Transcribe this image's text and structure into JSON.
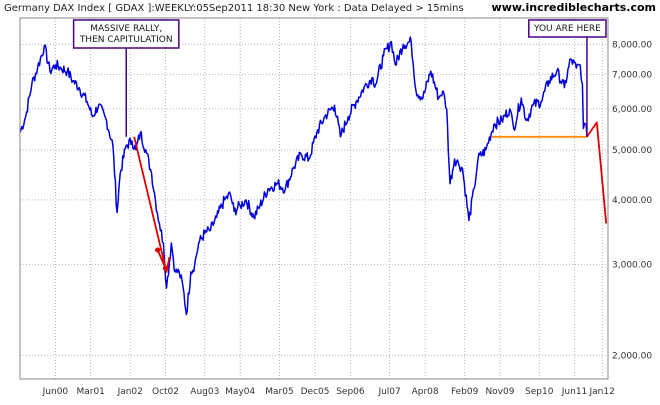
{
  "header": {
    "title": "Germany DAX Index [ GDAX ]:WEEKLY:05Sep2011 18:30 New York : Data Delayed > 15mins",
    "site": "www.incrediblecharts.com"
  },
  "colors": {
    "price_line": "#0000dd",
    "trend_line": "#dd0000",
    "support_line": "#ff8800",
    "annotation_border": "#4b0082",
    "grid": "#b4b4b4"
  },
  "chart_data": {
    "type": "line",
    "title": "Germany DAX Index [ GDAX ]:WEEKLY:05Sep2011 18:30 New York : Data Delayed > 15mins",
    "y_scale": "log",
    "ylim": [
      1800,
      9000
    ],
    "xlim": [
      "1999-09-01",
      "2012-02-15"
    ],
    "grid": true,
    "x_ticks": [
      {
        "label": "Jun00",
        "date": "2000-06-01"
      },
      {
        "label": "Mar01",
        "date": "2001-03-01"
      },
      {
        "label": "Jan02",
        "date": "2002-01-01"
      },
      {
        "label": "Oct02",
        "date": "2002-10-01"
      },
      {
        "label": "Aug03",
        "date": "2003-08-01"
      },
      {
        "label": "May04",
        "date": "2004-05-01"
      },
      {
        "label": "Mar05",
        "date": "2005-03-01"
      },
      {
        "label": "Dec05",
        "date": "2005-12-01"
      },
      {
        "label": "Sep06",
        "date": "2006-09-01"
      },
      {
        "label": "Jul07",
        "date": "2007-07-01"
      },
      {
        "label": "Apr08",
        "date": "2008-04-01"
      },
      {
        "label": "Feb09",
        "date": "2009-02-01"
      },
      {
        "label": "Nov09",
        "date": "2009-11-01"
      },
      {
        "label": "Sep10",
        "date": "2010-09-01"
      },
      {
        "label": "Jun11",
        "date": "2011-06-01"
      },
      {
        "label": "Jan12",
        "date": "2012-01-01"
      }
    ],
    "y_ticks": [
      {
        "label": "8,000.00",
        "value": 8000
      },
      {
        "label": "7,000.00",
        "value": 7000
      },
      {
        "label": "6,000.00",
        "value": 6000
      },
      {
        "label": "5,000.00",
        "value": 5000
      },
      {
        "label": "4,000.00",
        "value": 4000
      },
      {
        "label": "3,000.00",
        "value": 3000
      },
      {
        "label": "2,000.00",
        "value": 2000
      }
    ],
    "series": [
      {
        "role": "price",
        "points": [
          [
            "1999-09-01",
            5400
          ],
          [
            "1999-10-15",
            5800
          ],
          [
            "1999-12-01",
            6700
          ],
          [
            "2000-01-15",
            7200
          ],
          [
            "2000-03-07",
            7950
          ],
          [
            "2000-04-20",
            7100
          ],
          [
            "2000-06-01",
            7300
          ],
          [
            "2000-07-15",
            7200
          ],
          [
            "2000-09-01",
            7100
          ],
          [
            "2000-10-15",
            6800
          ],
          [
            "2000-12-01",
            6600
          ],
          [
            "2001-02-01",
            6200
          ],
          [
            "2001-03-15",
            5800
          ],
          [
            "2001-05-01",
            6100
          ],
          [
            "2001-07-01",
            5700
          ],
          [
            "2001-08-20",
            5100
          ],
          [
            "2001-09-21",
            3780
          ],
          [
            "2001-10-15",
            4500
          ],
          [
            "2001-12-01",
            5100
          ],
          [
            "2002-01-15",
            5200
          ],
          [
            "2002-02-15",
            5000
          ],
          [
            "2002-03-20",
            5400
          ],
          [
            "2002-05-01",
            5000
          ],
          [
            "2002-06-15",
            4500
          ],
          [
            "2002-07-15",
            4000
          ],
          [
            "2002-08-15",
            3600
          ],
          [
            "2002-09-15",
            3300
          ],
          [
            "2002-10-09",
            2700
          ],
          [
            "2002-11-15",
            3300
          ],
          [
            "2002-12-15",
            2900
          ],
          [
            "2003-01-15",
            2900
          ],
          [
            "2003-02-15",
            2700
          ],
          [
            "2003-03-12",
            2400
          ],
          [
            "2003-04-15",
            2900
          ],
          [
            "2003-05-15",
            3000
          ],
          [
            "2003-06-15",
            3300
          ],
          [
            "2003-08-01",
            3450
          ],
          [
            "2003-09-15",
            3500
          ],
          [
            "2003-11-01",
            3700
          ],
          [
            "2004-01-01",
            4000
          ],
          [
            "2004-02-15",
            4100
          ],
          [
            "2004-03-15",
            3800
          ],
          [
            "2004-05-01",
            3900
          ],
          [
            "2004-06-15",
            4000
          ],
          [
            "2004-08-15",
            3700
          ],
          [
            "2004-10-01",
            3900
          ],
          [
            "2004-12-01",
            4200
          ],
          [
            "2005-02-15",
            4300
          ],
          [
            "2005-04-15",
            4200
          ],
          [
            "2005-06-15",
            4600
          ],
          [
            "2005-08-15",
            4900
          ],
          [
            "2005-10-15",
            4800
          ],
          [
            "2005-12-15",
            5400
          ],
          [
            "2006-02-15",
            5800
          ],
          [
            "2006-05-01",
            6100
          ],
          [
            "2006-06-15",
            5300
          ],
          [
            "2006-08-15",
            5800
          ],
          [
            "2006-10-15",
            6200
          ],
          [
            "2006-12-15",
            6600
          ],
          [
            "2007-02-15",
            6900
          ],
          [
            "2007-03-15",
            6700
          ],
          [
            "2007-05-15",
            7600
          ],
          [
            "2007-07-15",
            8100
          ],
          [
            "2007-08-15",
            7300
          ],
          [
            "2007-10-15",
            8000
          ],
          [
            "2007-12-15",
            8100
          ],
          [
            "2008-01-21",
            6500
          ],
          [
            "2008-03-15",
            6300
          ],
          [
            "2008-05-15",
            7100
          ],
          [
            "2008-07-15",
            6300
          ],
          [
            "2008-08-15",
            6500
          ],
          [
            "2008-09-15",
            6000
          ],
          [
            "2008-10-10",
            4300
          ],
          [
            "2008-11-15",
            4800
          ],
          [
            "2008-12-15",
            4700
          ],
          [
            "2009-01-15",
            4600
          ],
          [
            "2009-03-06",
            3650
          ],
          [
            "2009-04-15",
            4200
          ],
          [
            "2009-05-15",
            4800
          ],
          [
            "2009-07-15",
            5000
          ],
          [
            "2009-09-15",
            5600
          ],
          [
            "2009-11-15",
            5700
          ],
          [
            "2010-01-15",
            6000
          ],
          [
            "2010-02-15",
            5500
          ],
          [
            "2010-04-15",
            6300
          ],
          [
            "2010-05-25",
            5700
          ],
          [
            "2010-07-15",
            6100
          ],
          [
            "2010-09-15",
            6200
          ],
          [
            "2010-11-15",
            6800
          ],
          [
            "2011-01-15",
            7100
          ],
          [
            "2011-03-15",
            6600
          ],
          [
            "2011-05-02",
            7500
          ],
          [
            "2011-06-15",
            7200
          ],
          [
            "2011-07-15",
            7300
          ],
          [
            "2011-08-01",
            6700
          ],
          [
            "2011-08-09",
            5500
          ],
          [
            "2011-08-25",
            5600
          ],
          [
            "2011-09-05",
            5300
          ]
        ]
      },
      {
        "role": "2002 decline trend",
        "points": [
          [
            "2002-02-01",
            5300
          ],
          [
            "2002-10-09",
            2900
          ],
          [
            "2002-11-01",
            3100
          ]
        ]
      },
      {
        "role": "2002 pullback marker",
        "points": [
          [
            "2002-08-01",
            3200
          ],
          [
            "2002-10-01",
            2950
          ]
        ]
      },
      {
        "role": "support level",
        "points": [
          [
            "2009-09-01",
            5300
          ],
          [
            "2011-09-05",
            5300
          ]
        ]
      },
      {
        "role": "projected path",
        "points": [
          [
            "2011-09-05",
            5300
          ],
          [
            "2011-11-20",
            5650
          ],
          [
            "2012-02-01",
            3600
          ]
        ]
      }
    ],
    "annotations": [
      {
        "lines": [
          "MASSIVE RALLY,",
          "THEN CAPITULATION"
        ],
        "date": "2001-12-01",
        "value": 5300
      },
      {
        "lines": [
          "YOU ARE HERE"
        ],
        "date": "2011-09-05",
        "value": 5300
      }
    ]
  }
}
